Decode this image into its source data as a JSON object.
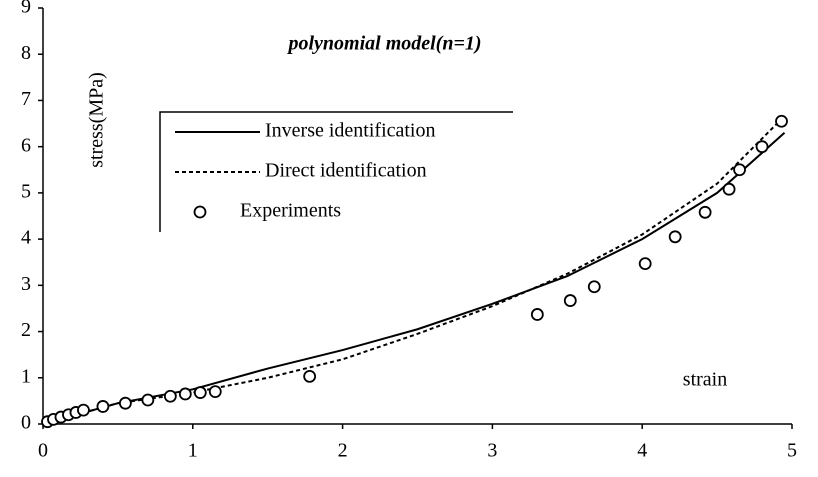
{
  "chart_data": {
    "type": "line",
    "annotations": {
      "model": "polynomial model(n=1)",
      "ylabel": "stress(MPa)",
      "xlabel": "strain"
    },
    "xlim": [
      0,
      5
    ],
    "xticks": [
      0,
      1,
      2,
      3,
      4,
      5
    ],
    "ylim": [
      0,
      9
    ],
    "yticks": [
      0,
      1,
      2,
      3,
      4,
      5,
      6,
      7,
      8,
      9
    ],
    "legend": "upper left",
    "series": [
      {
        "name": "Inverse identification",
        "style": "solid",
        "color": "#000000",
        "x": [
          0,
          0.5,
          1,
          1.5,
          2,
          2.5,
          3,
          3.5,
          4,
          4.5,
          4.95
        ],
        "values": [
          0,
          0.45,
          0.75,
          1.2,
          1.6,
          2.05,
          2.6,
          3.2,
          4.0,
          5.0,
          6.3
        ]
      },
      {
        "name": "Direct identification",
        "style": "dashed",
        "color": "#000000",
        "x": [
          0,
          0.5,
          1,
          1.5,
          2,
          2.5,
          3,
          3.5,
          4,
          4.5,
          4.9
        ],
        "values": [
          0,
          0.45,
          0.68,
          1.0,
          1.4,
          1.95,
          2.55,
          3.25,
          4.1,
          5.2,
          6.5
        ]
      },
      {
        "name": "Experiments",
        "style": "markers",
        "color": "#000000",
        "x": [
          0.03,
          0.07,
          0.12,
          0.17,
          0.22,
          0.27,
          0.4,
          0.55,
          0.7,
          0.85,
          0.95,
          1.05,
          1.15,
          1.78,
          3.3,
          3.52,
          3.68,
          4.02,
          4.22,
          4.42,
          4.58,
          4.65,
          4.8,
          4.93
        ],
        "values": [
          0.05,
          0.1,
          0.15,
          0.2,
          0.25,
          0.3,
          0.38,
          0.45,
          0.52,
          0.6,
          0.65,
          0.68,
          0.7,
          1.03,
          2.37,
          2.67,
          2.97,
          3.47,
          4.05,
          4.58,
          5.08,
          5.5,
          6.0,
          6.55
        ]
      }
    ]
  }
}
